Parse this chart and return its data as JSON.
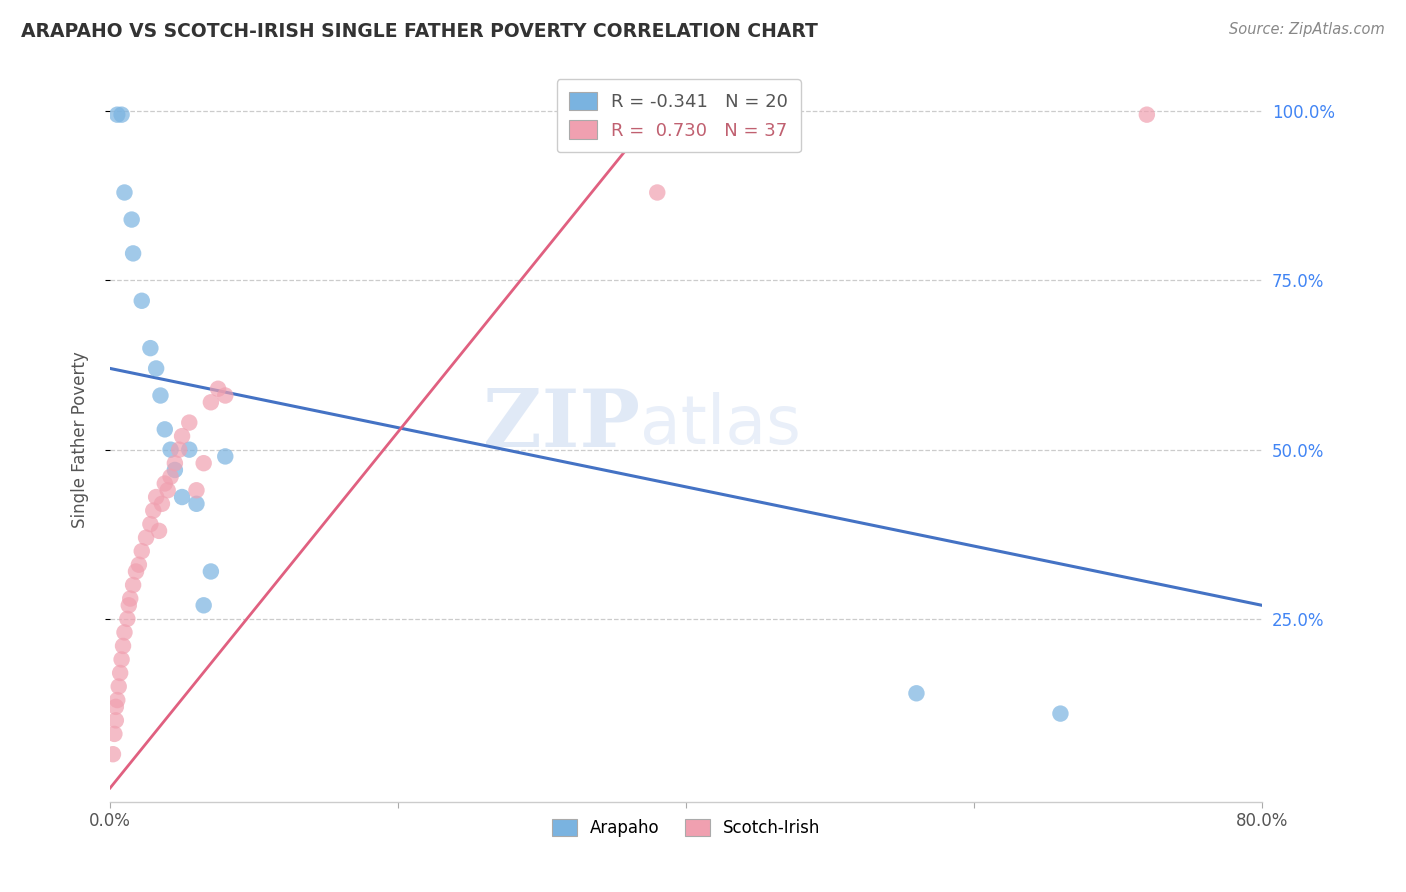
{
  "title": "ARAPAHO VS SCOTCH-IRISH SINGLE FATHER POVERTY CORRELATION CHART",
  "source": "Source: ZipAtlas.com",
  "ylabel": "Single Father Poverty",
  "xlim": [
    0.0,
    0.8
  ],
  "ylim": [
    -0.02,
    1.05
  ],
  "xtick_vals": [
    0.0,
    0.2,
    0.4,
    0.6,
    0.8
  ],
  "xtick_labels": [
    "0.0%",
    "",
    "",
    "",
    "80.0%"
  ],
  "ytick_positions": [
    1.0,
    0.75,
    0.5,
    0.25
  ],
  "ytick_labels": [
    "100.0%",
    "75.0%",
    "50.0%",
    "25.0%"
  ],
  "arapaho_color": "#7ab3e0",
  "scotch_irish_color": "#f0a0b0",
  "arapaho_line_color": "#4472c4",
  "scotch_irish_line_color": "#e06080",
  "arapaho_R": -0.341,
  "arapaho_N": 20,
  "scotch_irish_R": 0.73,
  "scotch_irish_N": 37,
  "watermark_zip": "ZIP",
  "watermark_atlas": "atlas",
  "arapaho_x": [
    0.005,
    0.008,
    0.01,
    0.015,
    0.016,
    0.022,
    0.028,
    0.032,
    0.035,
    0.038,
    0.042,
    0.045,
    0.05,
    0.055,
    0.06,
    0.065,
    0.07,
    0.08,
    0.56,
    0.66
  ],
  "arapaho_y": [
    0.995,
    0.995,
    0.88,
    0.84,
    0.79,
    0.72,
    0.65,
    0.62,
    0.58,
    0.53,
    0.5,
    0.47,
    0.43,
    0.5,
    0.42,
    0.27,
    0.32,
    0.49,
    0.14,
    0.11
  ],
  "scotch_irish_x": [
    0.002,
    0.003,
    0.004,
    0.004,
    0.005,
    0.006,
    0.007,
    0.008,
    0.009,
    0.01,
    0.012,
    0.013,
    0.014,
    0.016,
    0.018,
    0.02,
    0.022,
    0.025,
    0.028,
    0.03,
    0.032,
    0.034,
    0.036,
    0.038,
    0.04,
    0.042,
    0.045,
    0.048,
    0.05,
    0.055,
    0.06,
    0.065,
    0.07,
    0.075,
    0.08,
    0.38,
    0.72
  ],
  "scotch_irish_y": [
    0.05,
    0.08,
    0.1,
    0.12,
    0.13,
    0.15,
    0.17,
    0.19,
    0.21,
    0.23,
    0.25,
    0.27,
    0.28,
    0.3,
    0.32,
    0.33,
    0.35,
    0.37,
    0.39,
    0.41,
    0.43,
    0.38,
    0.42,
    0.45,
    0.44,
    0.46,
    0.48,
    0.5,
    0.52,
    0.54,
    0.44,
    0.48,
    0.57,
    0.59,
    0.58,
    0.88,
    0.995
  ],
  "arapaho_line_x0": 0.0,
  "arapaho_line_x1": 0.8,
  "arapaho_line_y0": 0.62,
  "arapaho_line_y1": 0.27,
  "scotch_line_x0": 0.0,
  "scotch_line_x1": 0.38,
  "scotch_line_y0": 0.0,
  "scotch_line_y1": 1.0
}
